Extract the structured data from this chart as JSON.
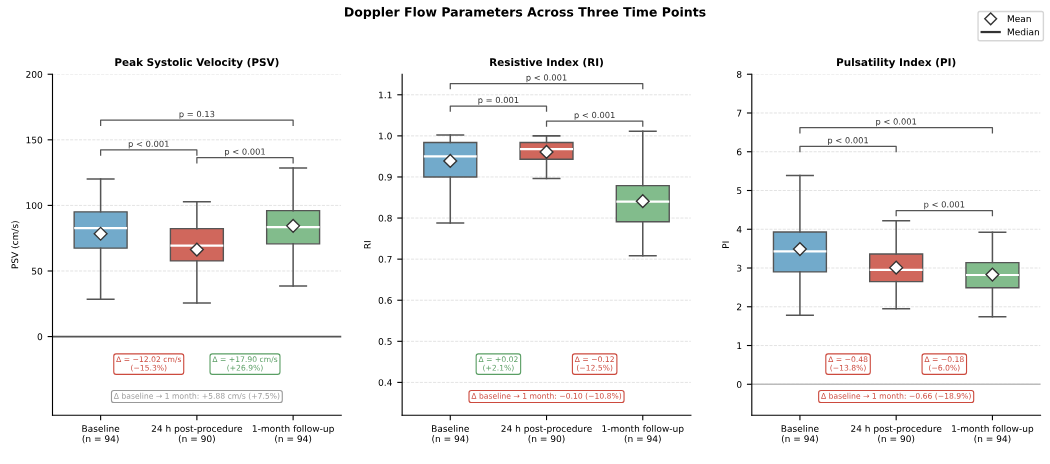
{
  "chart_data": [
    {
      "type": "box",
      "title": "Peak Systolic Velocity (PSV)",
      "ylabel": "PSV (cm/s)",
      "categories": [
        "Baseline\n(n = 94)",
        "24 h post-procedure\n(n = 90)",
        "1-month follow-up\n(n = 94)"
      ],
      "colors": [
        "#72aacb",
        "#d0675c",
        "#82bc8c"
      ],
      "boxes": [
        {
          "low": 28.4,
          "q1": 67.4,
          "median": 82.6,
          "q3": 95.1,
          "high": 120.2,
          "mean": 78.4
        },
        {
          "low": 25.6,
          "q1": 57.7,
          "median": 69.3,
          "q3": 82.3,
          "high": 102.8,
          "mean": 66.3
        },
        {
          "low": 38.6,
          "q1": 70.7,
          "median": 83.5,
          "q3": 96,
          "high": 128.6,
          "mean": 84.4
        }
      ],
      "ylim": [
        -60,
        200
      ],
      "yticks": [
        0,
        50,
        100,
        150,
        200
      ],
      "grid": "y",
      "ref_lines": [
        {
          "axis": "y",
          "value": 0,
          "color": "#555555"
        }
      ],
      "annotations": [
        "p < 0.001",
        "p < 0.001",
        "p = 0.13",
        "Δ = −12.02 cm/s\n(−15.3%)",
        "Δ = +17.90 cm/s\n(+26.9%)",
        "Δ baseline → 1 month: +5.88 cm/s (+7.5%)",
        "Doppler Flow Parameters Across Three Time Points"
      ]
    },
    {
      "type": "box",
      "title": "Resistive Index (RI)",
      "ylabel": "RI",
      "categories": [
        "Baseline\n(n = 94)",
        "24 h post-procedure\n(n = 90)",
        "1-month follow-up\n(n = 94)"
      ],
      "colors": [
        "#72aacb",
        "#d0675c",
        "#82bc8c"
      ],
      "boxes": [
        {
          "low": 0.788,
          "q1": 0.9,
          "median": 0.95,
          "q3": 0.984,
          "high": 1.002,
          "mean": 0.939
        },
        {
          "low": 0.896,
          "q1": 0.943,
          "median": 0.968,
          "q3": 0.984,
          "high": 1.0,
          "mean": 0.961
        },
        {
          "low": 0.708,
          "q1": 0.791,
          "median": 0.84,
          "q3": 0.879,
          "high": 1.011,
          "mean": 0.841
        }
      ],
      "ylim": [
        0.32,
        1.15
      ],
      "yticks": [
        0.4,
        0.5,
        0.6,
        0.7,
        0.8,
        0.9,
        {
          "value": 1.0,
          "label": "1.0"
        },
        1.1
      ],
      "grid": "y",
      "annotations": [
        "p = 0.001",
        "p < 0.001",
        "p < 0.001",
        "Δ = +0.02\n(+2.1%)",
        "Δ = −0.12\n(−12.5%)",
        "Δ baseline → 1 month: −0.10 (−10.8%)"
      ]
    },
    {
      "type": "box",
      "title": "Pulsatility Index (PI)",
      "ylabel": "PI",
      "categories": [
        "Baseline\n(n = 94)",
        "24 h post-procedure\n(n = 90)",
        "1-month follow-up\n(n = 94)"
      ],
      "colors": [
        "#72aacb",
        "#d0675c",
        "#82bc8c"
      ],
      "boxes": [
        {
          "low": 1.78,
          "q1": 2.9,
          "median": 3.43,
          "q3": 3.93,
          "high": 5.39,
          "mean": 3.49
        },
        {
          "low": 1.95,
          "q1": 2.65,
          "median": 2.95,
          "q3": 3.36,
          "high": 4.22,
          "mean": 3.01
        },
        {
          "low": 1.74,
          "q1": 2.49,
          "median": 2.82,
          "q3": 3.14,
          "high": 3.92,
          "mean": 2.83
        }
      ],
      "ylim": [
        -0.8,
        8
      ],
      "yticks": [
        0,
        1,
        2,
        3,
        4,
        5,
        6,
        7,
        8
      ],
      "grid": "y",
      "ref_lines": [
        {
          "axis": "y",
          "value": 0,
          "color": "#bbbbbb"
        }
      ],
      "annotations": [
        "p < 0.001",
        "p < 0.001",
        "p < 0.001",
        "Δ = −0.48\n(−13.8%)",
        "Δ = −0.18\n(−6.0%)",
        "Δ baseline → 1 month: −0.66 (−18.9%)",
        "Mean",
        "Median"
      ]
    }
  ]
}
